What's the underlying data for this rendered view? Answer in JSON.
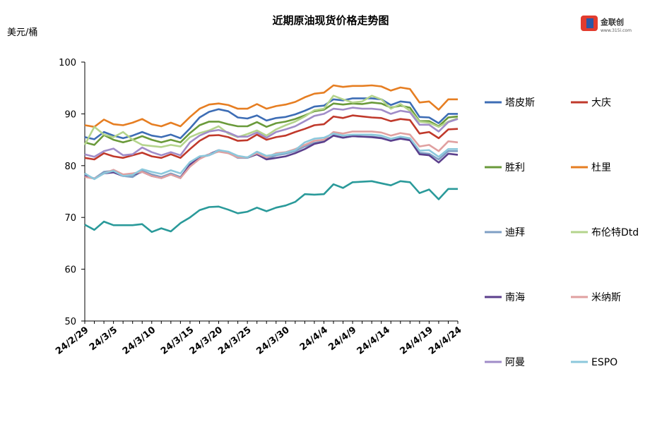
{
  "logo": {
    "text": "金联创",
    "sub": "www.315i.com"
  },
  "chart_data": {
    "type": "line",
    "title": "近期原油现货价格走势图",
    "ylabel": "美元/桶",
    "xlabel": "",
    "ylim": [
      50,
      100
    ],
    "yticks": [
      50,
      60,
      70,
      80,
      90,
      100
    ],
    "xtick_labels": [
      "24/2/29",
      "24/3/5",
      "24/3/10",
      "24/3/15",
      "24/3/20",
      "24/3/25",
      "24/3/30",
      "24/4/4",
      "24/4/9",
      "24/4/14",
      "24/4/19",
      "24/4/24"
    ],
    "x": [
      "24/2/29",
      "24/3/1",
      "24/3/4",
      "24/3/5",
      "24/3/6",
      "24/3/7",
      "24/3/8",
      "24/3/11",
      "24/3/12",
      "24/3/13",
      "24/3/14",
      "24/3/15",
      "24/3/18",
      "24/3/19",
      "24/3/20",
      "24/3/21",
      "24/3/22",
      "24/3/25",
      "24/3/26",
      "24/3/27",
      "24/3/28",
      "24/3/29",
      "24/4/1",
      "24/4/2",
      "24/4/3",
      "24/4/4",
      "24/4/5",
      "24/4/8",
      "24/4/9",
      "24/4/10",
      "24/4/11",
      "24/4/12",
      "24/4/15",
      "24/4/16",
      "24/4/17",
      "24/4/18",
      "24/4/19",
      "24/4/22",
      "24/4/23",
      "24/4/24"
    ],
    "legend_position": "right",
    "grid": false,
    "series": [
      {
        "name": "塔皮斯",
        "color": "#3d6db5",
        "values": [
          85.5,
          85.1,
          86.5,
          85.8,
          85.3,
          85.8,
          86.5,
          85.8,
          85.5,
          86.0,
          85.3,
          87.2,
          89.3,
          90.4,
          90.9,
          90.5,
          89.3,
          89.1,
          89.7,
          88.7,
          89.2,
          89.4,
          89.9,
          90.6,
          91.4,
          91.6,
          92.8,
          92.6,
          93.0,
          93.0,
          93.0,
          92.8,
          91.7,
          92.4,
          92.2,
          89.4,
          89.3,
          88.2,
          90.0,
          90.0
        ]
      },
      {
        "name": "大庆",
        "color": "#c0392b",
        "values": [
          81.5,
          81.2,
          82.4,
          81.8,
          81.5,
          82.0,
          82.5,
          81.8,
          81.5,
          82.2,
          81.5,
          83.2,
          84.8,
          85.8,
          85.9,
          85.5,
          84.8,
          84.9,
          86.0,
          85.0,
          85.5,
          85.8,
          86.5,
          87.1,
          87.8,
          88.0,
          89.5,
          89.2,
          89.7,
          89.5,
          89.3,
          89.2,
          88.6,
          89.0,
          88.8,
          86.2,
          86.5,
          85.3,
          87.0,
          87.1
        ]
      },
      {
        "name": "胜利",
        "color": "#6a9a3a",
        "values": [
          84.5,
          84.0,
          85.9,
          85.0,
          84.5,
          85.0,
          85.7,
          85.0,
          84.5,
          85.0,
          84.5,
          86.3,
          87.8,
          88.5,
          88.5,
          88.0,
          87.6,
          87.6,
          88.4,
          87.5,
          88.2,
          88.5,
          89.0,
          89.7,
          90.5,
          90.8,
          92.0,
          91.8,
          92.0,
          91.9,
          92.2,
          92.0,
          91.2,
          91.6,
          91.2,
          88.6,
          88.6,
          87.6,
          89.3,
          89.5
        ]
      },
      {
        "name": "杜里",
        "color": "#e67e22",
        "values": [
          87.8,
          87.5,
          88.9,
          88.0,
          87.8,
          88.3,
          89.0,
          88.0,
          87.6,
          88.3,
          87.6,
          89.4,
          91.0,
          91.8,
          92.0,
          91.7,
          91.0,
          91.0,
          91.9,
          91.0,
          91.5,
          91.8,
          92.3,
          93.2,
          93.9,
          94.1,
          95.5,
          95.2,
          95.4,
          95.4,
          95.5,
          95.3,
          94.5,
          95.1,
          94.8,
          92.2,
          92.4,
          90.8,
          92.8,
          92.8
        ]
      },
      {
        "name": "迪拜",
        "color": "#7f9fc4",
        "values": [
          78.2,
          77.5,
          78.8,
          79.0,
          78.0,
          77.8,
          79.0,
          78.3,
          77.8,
          78.5,
          77.8,
          80.1,
          81.6,
          82.0,
          82.8,
          82.5,
          81.5,
          81.5,
          82.2,
          81.3,
          82.0,
          82.3,
          82.8,
          83.7,
          84.4,
          84.7,
          85.8,
          85.4,
          85.7,
          85.6,
          85.6,
          85.4,
          84.8,
          85.3,
          85.0,
          82.5,
          82.3,
          81.2,
          82.8,
          82.8
        ]
      },
      {
        "name": "布伦特Dtd",
        "color": "#b4d48c",
        "values": [
          84.0,
          87.5,
          86.0,
          85.5,
          86.5,
          85.0,
          84.0,
          83.8,
          83.6,
          84.0,
          83.7,
          85.5,
          86.3,
          86.8,
          87.6,
          86.2,
          85.5,
          86.1,
          86.8,
          85.8,
          87.0,
          87.8,
          88.5,
          89.5,
          90.7,
          91.0,
          93.5,
          92.8,
          92.2,
          92.4,
          93.5,
          92.8,
          91.0,
          91.9,
          90.6,
          88.5,
          88.3,
          87.5,
          88.5,
          89.2
        ]
      },
      {
        "name": "南海",
        "color": "#5b3f8c",
        "values": [
          78.0,
          77.5,
          78.5,
          78.7,
          78.0,
          78.2,
          78.8,
          78.0,
          77.6,
          78.3,
          77.6,
          80.2,
          81.5,
          82.2,
          83.0,
          82.5,
          81.7,
          81.6,
          82.2,
          81.2,
          81.5,
          81.8,
          82.4,
          83.2,
          84.2,
          84.6,
          85.8,
          85.4,
          85.7,
          85.6,
          85.5,
          85.3,
          84.8,
          85.2,
          84.9,
          82.2,
          82.0,
          80.6,
          82.3,
          82.1
        ]
      },
      {
        "name": "米纳斯",
        "color": "#e0a0a0",
        "values": [
          77.8,
          77.5,
          78.5,
          79.2,
          78.3,
          78.5,
          78.8,
          78.0,
          77.6,
          78.3,
          77.6,
          79.8,
          81.3,
          82.2,
          82.7,
          82.4,
          81.6,
          81.6,
          82.4,
          81.6,
          82.4,
          82.6,
          83.2,
          84.0,
          84.8,
          85.0,
          86.5,
          86.2,
          86.6,
          86.6,
          86.6,
          86.4,
          85.8,
          86.3,
          86.0,
          83.7,
          84.0,
          82.8,
          84.7,
          84.5
        ]
      },
      {
        "name": "阿曼",
        "color": "#a08cc8",
        "values": [
          82.2,
          81.7,
          82.8,
          83.3,
          82.0,
          82.2,
          83.5,
          82.6,
          82.0,
          82.6,
          82.0,
          84.5,
          85.8,
          86.6,
          86.9,
          86.4,
          85.6,
          85.6,
          86.4,
          85.4,
          86.5,
          87.0,
          87.6,
          88.6,
          89.6,
          90.0,
          91.0,
          90.8,
          91.2,
          91.0,
          91.0,
          90.8,
          90.0,
          90.6,
          90.3,
          87.9,
          87.9,
          86.6,
          88.4,
          89.0
        ]
      },
      {
        "name": "ESPO",
        "color": "#8cc8dc",
        "values": [
          78.5,
          77.4,
          78.5,
          79.0,
          78.0,
          78.2,
          79.3,
          78.8,
          78.4,
          79.1,
          78.5,
          80.7,
          81.8,
          82.0,
          83.0,
          82.7,
          81.9,
          81.6,
          82.7,
          81.9,
          82.2,
          82.5,
          83.0,
          84.5,
          85.2,
          85.4,
          86.2,
          85.8,
          86.0,
          86.0,
          86.0,
          85.8,
          85.2,
          85.6,
          85.3,
          82.9,
          83.0,
          81.7,
          83.2,
          83.2
        ]
      },
      {
        "name": "",
        "color": "#2a9a9a",
        "values": [
          68.6,
          67.6,
          69.2,
          68.5,
          68.5,
          68.5,
          68.7,
          67.2,
          67.9,
          67.3,
          68.9,
          70.0,
          71.4,
          72.0,
          72.1,
          71.5,
          70.8,
          71.1,
          71.9,
          71.2,
          71.9,
          72.3,
          73.0,
          74.5,
          74.4,
          74.5,
          76.4,
          75.7,
          76.8,
          76.9,
          77.0,
          76.6,
          76.2,
          77.0,
          76.8,
          74.7,
          75.4,
          73.5,
          75.5,
          75.5
        ]
      }
    ]
  }
}
